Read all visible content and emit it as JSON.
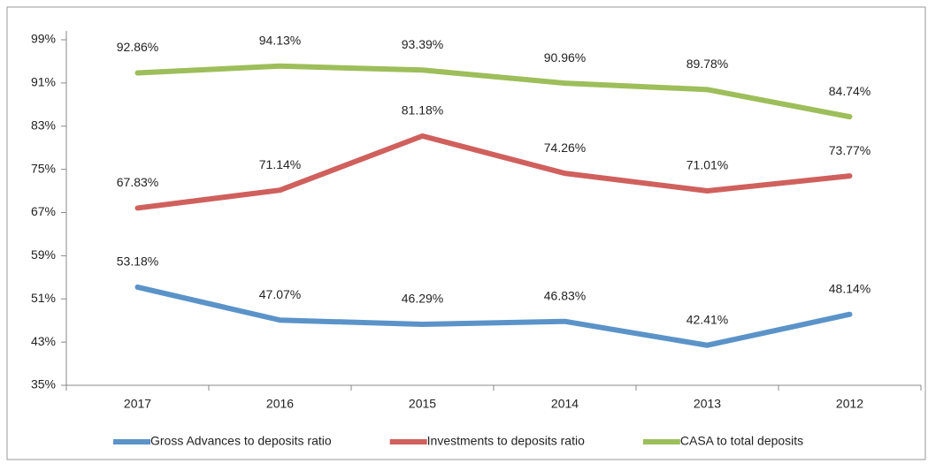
{
  "chart_data": {
    "type": "line",
    "categories": [
      "2017",
      "2016",
      "2015",
      "2014",
      "2013",
      "2012"
    ],
    "series": [
      {
        "name": "Gross Advances to deposits ratio",
        "color": "#5b93c9",
        "values": [
          53.18,
          47.07,
          46.29,
          46.83,
          42.41,
          48.14
        ],
        "value_labels": [
          "53.18%",
          "47.07%",
          "46.29%",
          "46.83%",
          "42.41%",
          "48.14%"
        ]
      },
      {
        "name": "Investments to deposits ratio",
        "color": "#d0605d",
        "values": [
          67.83,
          71.14,
          81.18,
          74.26,
          71.01,
          73.77
        ],
        "value_labels": [
          "67.83%",
          "71.14%",
          "81.18%",
          "74.26%",
          "71.01%",
          "73.77%"
        ]
      },
      {
        "name": "CASA to total deposits",
        "color": "#9dbe5a",
        "values": [
          92.86,
          94.13,
          93.39,
          90.96,
          89.78,
          84.74
        ],
        "value_labels": [
          "92.86%",
          "94.13%",
          "93.39%",
          "90.96%",
          "89.78%",
          "84.74%"
        ]
      }
    ],
    "ylim": [
      35,
      99
    ],
    "yticks": [
      {
        "value": 35,
        "label": "35%"
      },
      {
        "value": 43,
        "label": "43%"
      },
      {
        "value": 51,
        "label": "51%"
      },
      {
        "value": 59,
        "label": "59%"
      },
      {
        "value": 67,
        "label": "67%"
      },
      {
        "value": 75,
        "label": "75%"
      },
      {
        "value": 83,
        "label": "83%"
      },
      {
        "value": 91,
        "label": "91%"
      },
      {
        "value": 99,
        "label": "99%"
      }
    ],
    "grid": false,
    "legend": "bottom"
  }
}
